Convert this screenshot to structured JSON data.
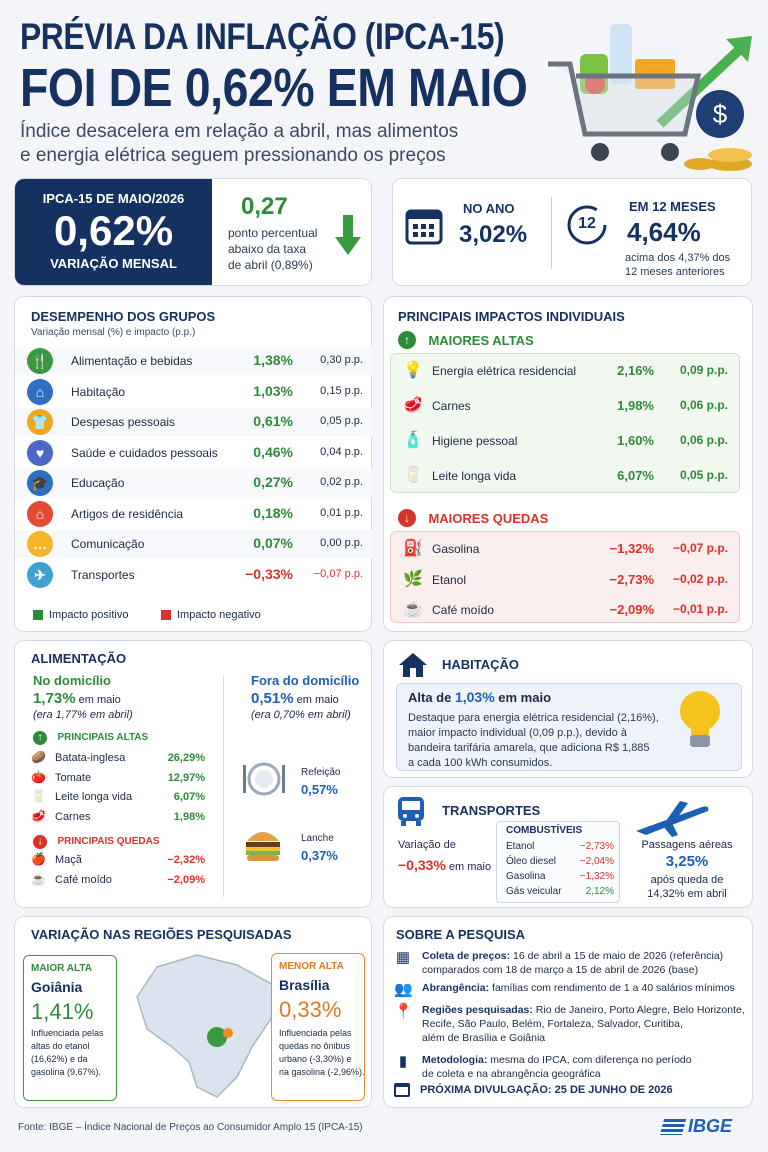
{
  "header": {
    "title_line1": "PRÉVIA DA INFLAÇÃO (IPCA-15)",
    "title_line2": "FOI DE 0,62% EM MAIO",
    "subtitle_line1": "Índice desacelera em relação a abril, mas alimentos",
    "subtitle_line2": "e energia elétrica seguem pressionando os preços"
  },
  "headline": {
    "label": "IPCA-15 DE MAIO/2026",
    "value": "0,62%",
    "caption": "VARIAÇÃO MENSAL",
    "diff_value": "0,27",
    "diff_text1": "ponto percentual",
    "diff_text2": "abaixo da taxa",
    "diff_text3": "de abril (0,89%)"
  },
  "year": {
    "label": "NO ANO",
    "value": "3,02%"
  },
  "twelve": {
    "icon_number": "12",
    "label": "EM 12 MESES",
    "value": "4,64%",
    "note1": "acima dos 4,37% dos",
    "note2": "12 meses anteriores"
  },
  "groups": {
    "title": "DESEMPENHO DOS GRUPOS",
    "subtitle": "Variação mensal (%) e impacto (p.p.)",
    "rows": [
      {
        "name": "Alimentação e bebidas",
        "value": "1,38%",
        "impact": "0,30 p.p.",
        "color": "#3a9a3f",
        "icon": "fork-knife-icon",
        "glyph": "🍴"
      },
      {
        "name": "Habitação",
        "value": "1,03%",
        "impact": "0,15 p.p.",
        "color": "#2f6fc1",
        "icon": "house-icon",
        "glyph": "⌂"
      },
      {
        "name": "Despesas pessoais",
        "value": "0,61%",
        "impact": "0,05 p.p.",
        "color": "#f0a81c",
        "icon": "shirt-icon",
        "glyph": "👕"
      },
      {
        "name": "Saúde e cuidados pessoais",
        "value": "0,46%",
        "impact": "0,04 p.p.",
        "color": "#4b69c2",
        "icon": "heart-icon",
        "glyph": "♥"
      },
      {
        "name": "Educação",
        "value": "0,27%",
        "impact": "0,02 p.p.",
        "color": "#2f6fc1",
        "icon": "graduation-cap-icon",
        "glyph": "🎓"
      },
      {
        "name": "Artigos de residência",
        "value": "0,18%",
        "impact": "0,01 p.p.",
        "color": "#e24a31",
        "icon": "home-goods-icon",
        "glyph": "⌂"
      },
      {
        "name": "Comunicação",
        "value": "0,07%",
        "impact": "0,00 p.p.",
        "color": "#f4b628",
        "icon": "chat-icon",
        "glyph": "…"
      },
      {
        "name": "Transportes",
        "value": "−0,33%",
        "impact": "−0,07 p.p.",
        "color": "#3fa1cf",
        "icon": "airplane-icon",
        "glyph": "✈"
      }
    ],
    "legend_pos": "Impacto positivo",
    "legend_neg": "Impacto negativo",
    "pos_color": "#2e8b3a",
    "neg_color": "#d8322b"
  },
  "impacts": {
    "title": "PRINCIPAIS IMPACTOS INDIVIDUAIS",
    "highs_label": "MAIORES ALTAS",
    "lows_label": "MAIORES QUEDAS",
    "highs": [
      {
        "name": "Energia elétrica residencial",
        "value": "2,16%",
        "impact": "0,09 p.p.",
        "icon": "light-bulb-icon",
        "glyph": "💡"
      },
      {
        "name": "Carnes",
        "value": "1,98%",
        "impact": "0,06 p.p.",
        "icon": "meat-icon",
        "glyph": "🥩"
      },
      {
        "name": "Higiene pessoal",
        "value": "1,60%",
        "impact": "0,06 p.p.",
        "icon": "soap-bottle-icon",
        "glyph": "🧴"
      },
      {
        "name": "Leite longa vida",
        "value": "6,07%",
        "impact": "0,05 p.p.",
        "icon": "milk-carton-icon",
        "glyph": "🥛"
      }
    ],
    "lows": [
      {
        "name": "Gasolina",
        "value": "−1,32%",
        "impact": "−0,07 p.p.",
        "icon": "gas-pump-icon",
        "glyph": "⛽"
      },
      {
        "name": "Etanol",
        "value": "−2,73%",
        "impact": "−0,02 p.p.",
        "icon": "leaf-icon",
        "glyph": "🌿"
      },
      {
        "name": "Café moído",
        "value": "−2,09%",
        "impact": "−0,01 p.p.",
        "icon": "coffee-icon",
        "glyph": "☕"
      }
    ]
  },
  "food": {
    "title": "ALIMENTAÇÃO",
    "home": {
      "label": "No domicílio",
      "value": "1,73%",
      "suffix": " em maio",
      "prev": "(era 1,77% em abril)"
    },
    "away": {
      "label": "Fora do domicílio",
      "value": "0,51%",
      "suffix": " em maio",
      "prev": "(era 0,70% em abril)"
    },
    "highs_label": "PRINCIPAIS ALTAS",
    "lows_label": "PRINCIPAIS QUEDAS",
    "highs": [
      {
        "name": "Batata-inglesa",
        "value": "26,29%",
        "glyph": "🥔"
      },
      {
        "name": "Tomate",
        "value": "12,97%",
        "glyph": "🍅"
      },
      {
        "name": "Leite longa vida",
        "value": "6,07%",
        "glyph": "🥛"
      },
      {
        "name": "Carnes",
        "value": "1,98%",
        "glyph": "🥩"
      }
    ],
    "lows": [
      {
        "name": "Maçã",
        "value": "−2,32%",
        "glyph": "🍎"
      },
      {
        "name": "Café moído",
        "value": "−2,09%",
        "glyph": "☕"
      }
    ],
    "meal_label": "Refeição",
    "meal_value": "0,57%",
    "snack_label": "Lanche",
    "snack_value": "0,37%"
  },
  "housing": {
    "title": "HABITAÇÃO",
    "lead_prefix": "Alta de ",
    "lead_value": "1,03%",
    "lead_suffix": " em maio",
    "text": [
      "Destaque para energia elétrica residencial (2,16%),",
      "maior impacto individual (0,09 p.p.), devido à",
      "bandeira tarifária amarela, que adiciona R$ 1,885",
      "a cada 100 kWh consumidos."
    ]
  },
  "transport": {
    "title": "TRANSPORTES",
    "var_label": "Variação de",
    "var_value": "−0,33%",
    "var_suffix": " em maio",
    "fuel_title": "COMBUSTÍVEIS",
    "fuels": [
      {
        "name": "Etanol",
        "value": "−2,73%"
      },
      {
        "name": "Óleo diesel",
        "value": "−2,04%"
      },
      {
        "name": "Gasolina",
        "value": "−1,32%"
      },
      {
        "name": "Gás veicular",
        "value": "2,12%"
      }
    ],
    "air_label": "Passagens aéreas",
    "air_value": "3,25%",
    "air_note1": "após queda de",
    "air_note2": "14,32% em abril"
  },
  "regions": {
    "title": "VARIAÇÃO NAS REGIÕES PESQUISADAS",
    "high": {
      "label": "MAIOR ALTA",
      "city": "Goiânia",
      "value": "1,41%",
      "note": [
        "Influenciada pelas",
        "altas do etanol",
        "(16,62%) e da",
        "gasolina (9,67%)."
      ]
    },
    "low": {
      "label": "MENOR ALTA",
      "city": "Brasília",
      "value": "0,33%",
      "note": [
        "Influenciada pelas",
        "quedas no ônibus",
        "urbano (-3,30%) e",
        "na gasolina (-2,96%)."
      ]
    }
  },
  "about": {
    "title": "SOBRE A PESQUISA",
    "items": [
      {
        "bold": "Coleta de preços:",
        "text": " 16 de abril a 15 de maio de 2026 (referência)",
        "more": "comparados com 18 de março a 15 de abril de 2026 (base)",
        "extra": "",
        "icon": "calendar-icon"
      },
      {
        "bold": "Abrangência:",
        "text": " famílias com rendimento de 1 a 40 salários mínimos",
        "more": "",
        "extra": "",
        "icon": "people-icon"
      },
      {
        "bold": "Regiões pesquisadas:",
        "text": " Rio de Janeiro, Porto Alegre, Belo Horizonte,",
        "more": "Recife, São Paulo, Belém, Fortaleza, Salvador, Curitiba,",
        "extra": "além de Brasília e Goiânia",
        "icon": "map-pin-icon"
      },
      {
        "bold": "Metodologia:",
        "text": " mesma do IPCA, com diferença no período",
        "more": "de coleta e na abrangência geográfica",
        "extra": "",
        "icon": "bar-chart-icon"
      }
    ],
    "next": "PRÓXIMA DIVULGAÇÃO: 25 DE JUNHO DE 2026"
  },
  "footer": {
    "source": "Fonte: IBGE – Índice Nacional de Preços ao Consumidor Amplo 15 (IPCA-15)",
    "logo": "IBGE"
  }
}
